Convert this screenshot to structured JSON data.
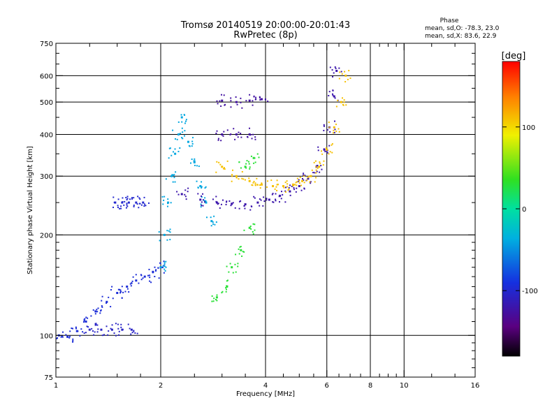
{
  "chart_data": {
    "type": "scatter",
    "title": "Tromsø 20140519 20:00:00-20:01:43",
    "subtitle": "RwPretec (8p)",
    "phase_box": {
      "heading": "Phase",
      "line_o": "mean, sd,O: -78.3, 23.0",
      "line_x": "mean, sd,X:  83.6, 22.9"
    },
    "xlabel": "Frequency [MHz]",
    "ylabel": "Stationary phase Virtual Height [km]",
    "xscale": "log",
    "yscale": "log",
    "xlim": [
      1,
      16
    ],
    "ylim": [
      75,
      750
    ],
    "xticks": [
      1,
      2,
      4,
      6,
      8,
      10,
      16
    ],
    "xtick_labels": [
      "1",
      "2",
      "4",
      "6",
      "8",
      "10",
      "16"
    ],
    "x_gridlines": [
      2,
      4,
      6,
      8,
      10
    ],
    "x_minor_ticks": [
      1.25,
      1.5,
      1.75,
      2.5,
      3,
      3.5,
      4.5,
      5,
      5.5,
      6.5,
      7,
      7.5,
      8.5,
      9,
      9.5,
      12,
      14
    ],
    "yticks": [
      75,
      100,
      200,
      300,
      400,
      500,
      600,
      750
    ],
    "ytick_labels": [
      "75",
      "100",
      "200",
      "300",
      "400",
      "500",
      "600",
      "750"
    ],
    "y_gridlines": [
      100,
      200,
      300,
      400,
      500,
      600
    ],
    "y_minor_ticks": [
      80,
      85,
      90,
      95,
      110,
      120,
      130,
      140,
      150,
      160,
      170,
      180,
      190,
      250,
      350,
      450,
      550,
      650,
      700
    ],
    "colorbar": {
      "label": "[deg]",
      "min": -180,
      "max": 180,
      "ticks": [
        100,
        0,
        -100
      ],
      "tick_labels": [
        "100",
        "0",
        "-100"
      ]
    },
    "grid": true,
    "series": [
      {
        "values": [
          {
            "f": 1.02,
            "h": 100
          },
          {
            "f": 1.08,
            "h": 99
          },
          {
            "f": 1.15,
            "h": 103
          },
          {
            "f": 1.22,
            "h": 110
          },
          {
            "f": 1.3,
            "h": 118
          },
          {
            "f": 1.4,
            "h": 126
          },
          {
            "f": 1.5,
            "h": 134
          },
          {
            "f": 1.6,
            "h": 140
          },
          {
            "f": 1.7,
            "h": 146
          },
          {
            "f": 1.8,
            "h": 150
          },
          {
            "f": 1.9,
            "h": 155
          },
          {
            "f": 2.0,
            "h": 160
          }
        ],
        "phase": -95
      },
      {
        "values": [
          {
            "f": 1.25,
            "h": 104
          },
          {
            "f": 1.35,
            "h": 104
          },
          {
            "f": 1.45,
            "h": 104
          },
          {
            "f": 1.55,
            "h": 104
          },
          {
            "f": 1.65,
            "h": 104
          }
        ],
        "phase": -105
      },
      {
        "values": [
          {
            "f": 1.48,
            "h": 250
          },
          {
            "f": 1.55,
            "h": 250
          },
          {
            "f": 1.62,
            "h": 250
          },
          {
            "f": 1.7,
            "h": 250
          },
          {
            "f": 1.78,
            "h": 250
          }
        ],
        "phase": -100
      },
      {
        "values": [
          {
            "f": 2.0,
            "h": 160
          },
          {
            "f": 2.05,
            "h": 200
          },
          {
            "f": 2.1,
            "h": 250
          },
          {
            "f": 2.15,
            "h": 300
          },
          {
            "f": 2.2,
            "h": 350
          },
          {
            "f": 2.25,
            "h": 400
          },
          {
            "f": 2.3,
            "h": 450
          },
          {
            "f": 2.4,
            "h": 380
          },
          {
            "f": 2.5,
            "h": 330
          },
          {
            "f": 2.6,
            "h": 280
          },
          {
            "f": 2.7,
            "h": 250
          },
          {
            "f": 2.8,
            "h": 220
          }
        ],
        "phase": -40
      },
      {
        "values": [
          {
            "f": 2.3,
            "h": 265
          },
          {
            "f": 2.6,
            "h": 255
          },
          {
            "f": 2.9,
            "h": 250
          },
          {
            "f": 3.2,
            "h": 248
          },
          {
            "f": 3.5,
            "h": 247
          },
          {
            "f": 3.8,
            "h": 250
          },
          {
            "f": 4.1,
            "h": 255
          },
          {
            "f": 4.4,
            "h": 262
          },
          {
            "f": 4.7,
            "h": 270
          },
          {
            "f": 5.0,
            "h": 280
          },
          {
            "f": 5.3,
            "h": 295
          },
          {
            "f": 5.6,
            "h": 320
          },
          {
            "f": 5.9,
            "h": 360
          },
          {
            "f": 6.1,
            "h": 420
          },
          {
            "f": 6.3,
            "h": 520
          },
          {
            "f": 6.4,
            "h": 620
          }
        ],
        "phase": -120
      },
      {
        "values": [
          {
            "f": 3.0,
            "h": 320
          },
          {
            "f": 3.3,
            "h": 300
          },
          {
            "f": 3.6,
            "h": 290
          },
          {
            "f": 3.9,
            "h": 283
          },
          {
            "f": 4.2,
            "h": 280
          },
          {
            "f": 4.5,
            "h": 280
          },
          {
            "f": 4.8,
            "h": 283
          },
          {
            "f": 5.1,
            "h": 290
          },
          {
            "f": 5.4,
            "h": 300
          },
          {
            "f": 5.7,
            "h": 320
          },
          {
            "f": 6.0,
            "h": 360
          },
          {
            "f": 6.3,
            "h": 420
          },
          {
            "f": 6.6,
            "h": 500
          },
          {
            "f": 6.8,
            "h": 600
          }
        ],
        "phase": 110
      },
      {
        "values": [
          {
            "f": 3.0,
            "h": 400
          },
          {
            "f": 3.3,
            "h": 400
          },
          {
            "f": 3.6,
            "h": 400
          },
          {
            "f": 3.0,
            "h": 505
          },
          {
            "f": 3.3,
            "h": 500
          },
          {
            "f": 3.6,
            "h": 505
          },
          {
            "f": 3.9,
            "h": 510
          }
        ],
        "phase": -125
      },
      {
        "values": [
          {
            "f": 2.9,
            "h": 130
          },
          {
            "f": 3.1,
            "h": 140
          },
          {
            "f": 3.2,
            "h": 160
          },
          {
            "f": 3.4,
            "h": 180
          },
          {
            "f": 3.6,
            "h": 210
          },
          {
            "f": 3.5,
            "h": 320
          },
          {
            "f": 3.7,
            "h": 340
          }
        ],
        "phase": 30
      }
    ]
  }
}
